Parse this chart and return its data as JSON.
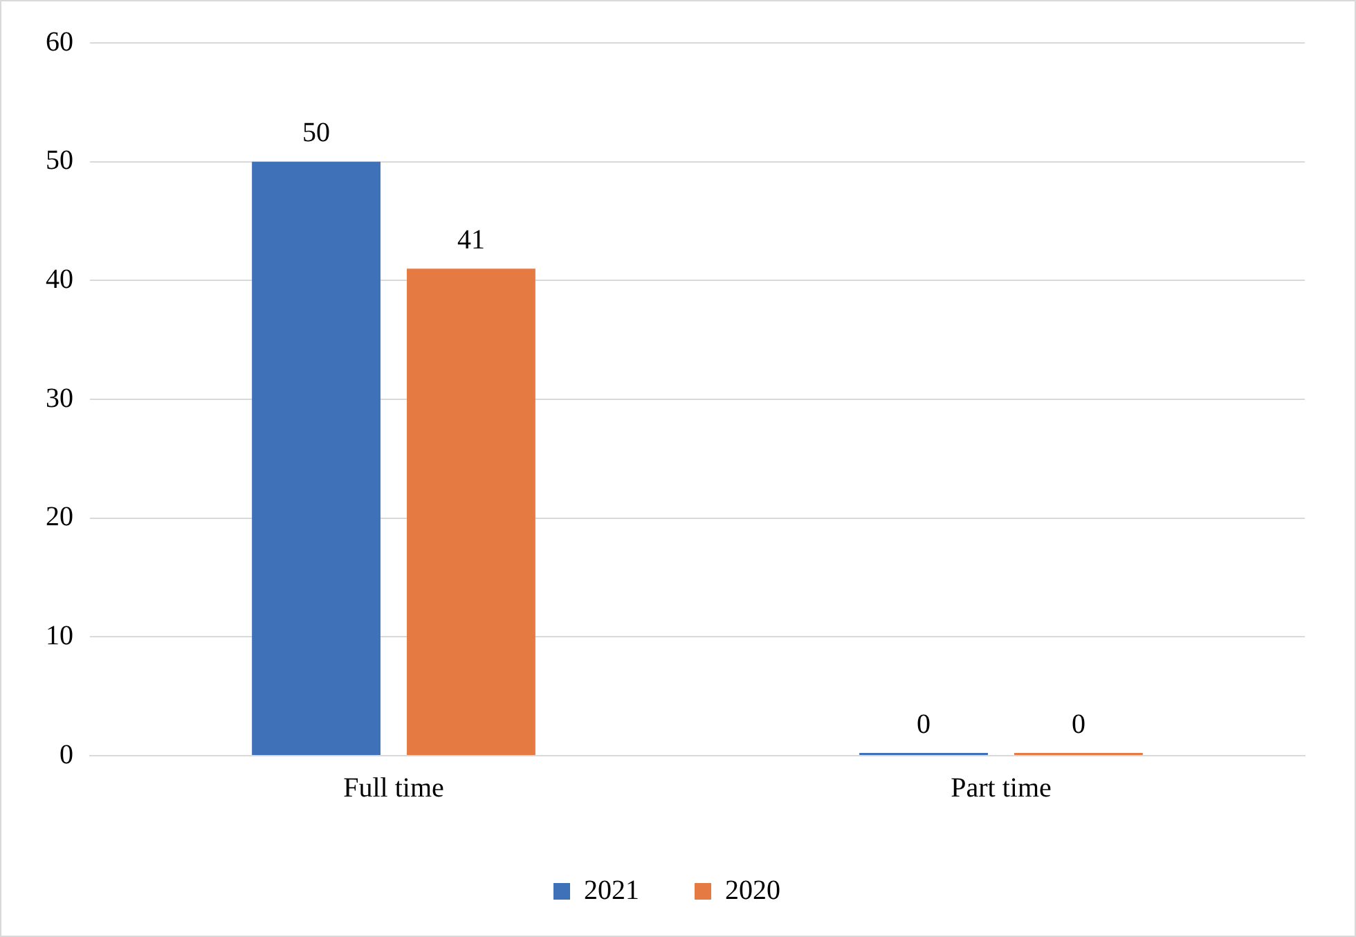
{
  "chart_data": {
    "type": "bar",
    "categories": [
      "Full time",
      "Part time"
    ],
    "series": [
      {
        "name": "2021",
        "color": "#3f71b8",
        "values": [
          50,
          0
        ]
      },
      {
        "name": "2020",
        "color": "#e57a43",
        "values": [
          41,
          0
        ]
      }
    ],
    "ylim": [
      0,
      60
    ],
    "yticks": [
      0,
      10,
      20,
      30,
      40,
      50,
      60
    ],
    "grid": "y",
    "legend": "bottom",
    "data_labels": true
  }
}
